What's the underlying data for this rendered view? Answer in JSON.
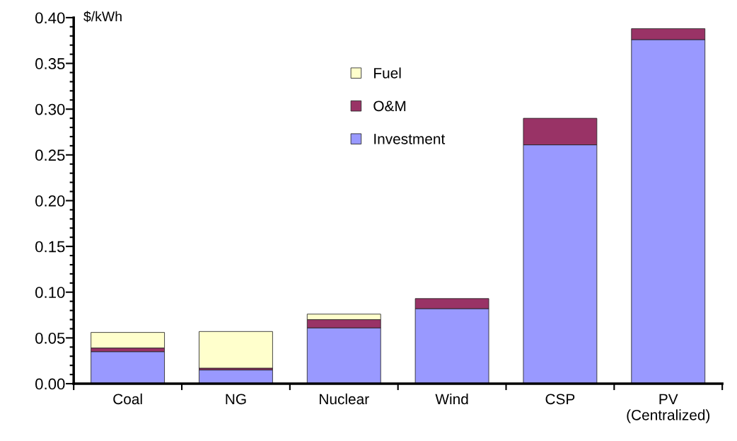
{
  "chart_data": {
    "type": "bar",
    "stacked": true,
    "ylabel": "$/kWh",
    "categories": [
      "Coal",
      "NG",
      "Nuclear",
      "Wind",
      "CSP",
      "PV\n(Centralized)"
    ],
    "series": [
      {
        "name": "Investment",
        "color": "#9999ff",
        "values": [
          0.035,
          0.015,
          0.061,
          0.082,
          0.261,
          0.376
        ]
      },
      {
        "name": "O&M",
        "color": "#993366",
        "values": [
          0.004,
          0.002,
          0.009,
          0.011,
          0.029,
          0.012
        ]
      },
      {
        "name": "Fuel",
        "color": "#ffffcc",
        "values": [
          0.017,
          0.04,
          0.006,
          null,
          null,
          null
        ]
      }
    ],
    "ylim": [
      0,
      0.4
    ],
    "yticks": [
      {
        "value": 0,
        "label": "0.00"
      },
      {
        "value": 0.01,
        "label": null
      },
      {
        "value": 0.02,
        "label": null
      },
      {
        "value": 0.03,
        "label": null
      },
      {
        "value": 0.04,
        "label": null
      },
      {
        "value": 0.05,
        "label": "0.05"
      },
      {
        "value": 0.06,
        "label": null
      },
      {
        "value": 0.07,
        "label": null
      },
      {
        "value": 0.08,
        "label": null
      },
      {
        "value": 0.09,
        "label": null
      },
      {
        "value": 0.1,
        "label": "0.10"
      },
      {
        "value": 0.11,
        "label": null
      },
      {
        "value": 0.12,
        "label": null
      },
      {
        "value": 0.13,
        "label": null
      },
      {
        "value": 0.14,
        "label": null
      },
      {
        "value": 0.15,
        "label": "0.15"
      },
      {
        "value": 0.16,
        "label": null
      },
      {
        "value": 0.17,
        "label": null
      },
      {
        "value": 0.18,
        "label": null
      },
      {
        "value": 0.19,
        "label": null
      },
      {
        "value": 0.2,
        "label": "0.20"
      },
      {
        "value": 0.21,
        "label": null
      },
      {
        "value": 0.22,
        "label": null
      },
      {
        "value": 0.23,
        "label": null
      },
      {
        "value": 0.24,
        "label": null
      },
      {
        "value": 0.25,
        "label": "0.25"
      },
      {
        "value": 0.26,
        "label": null
      },
      {
        "value": 0.27,
        "label": null
      },
      {
        "value": 0.28,
        "label": null
      },
      {
        "value": 0.29,
        "label": null
      },
      {
        "value": 0.3,
        "label": "0.30"
      },
      {
        "value": 0.31,
        "label": null
      },
      {
        "value": 0.32,
        "label": null
      },
      {
        "value": 0.33,
        "label": null
      },
      {
        "value": 0.34,
        "label": null
      },
      {
        "value": 0.35,
        "label": "0.35"
      },
      {
        "value": 0.36,
        "label": null
      },
      {
        "value": 0.37,
        "label": null
      },
      {
        "value": 0.38,
        "label": null
      },
      {
        "value": 0.39,
        "label": null
      },
      {
        "value": 0.4,
        "label": "0.40"
      }
    ],
    "grid": false,
    "legend": "top center"
  }
}
